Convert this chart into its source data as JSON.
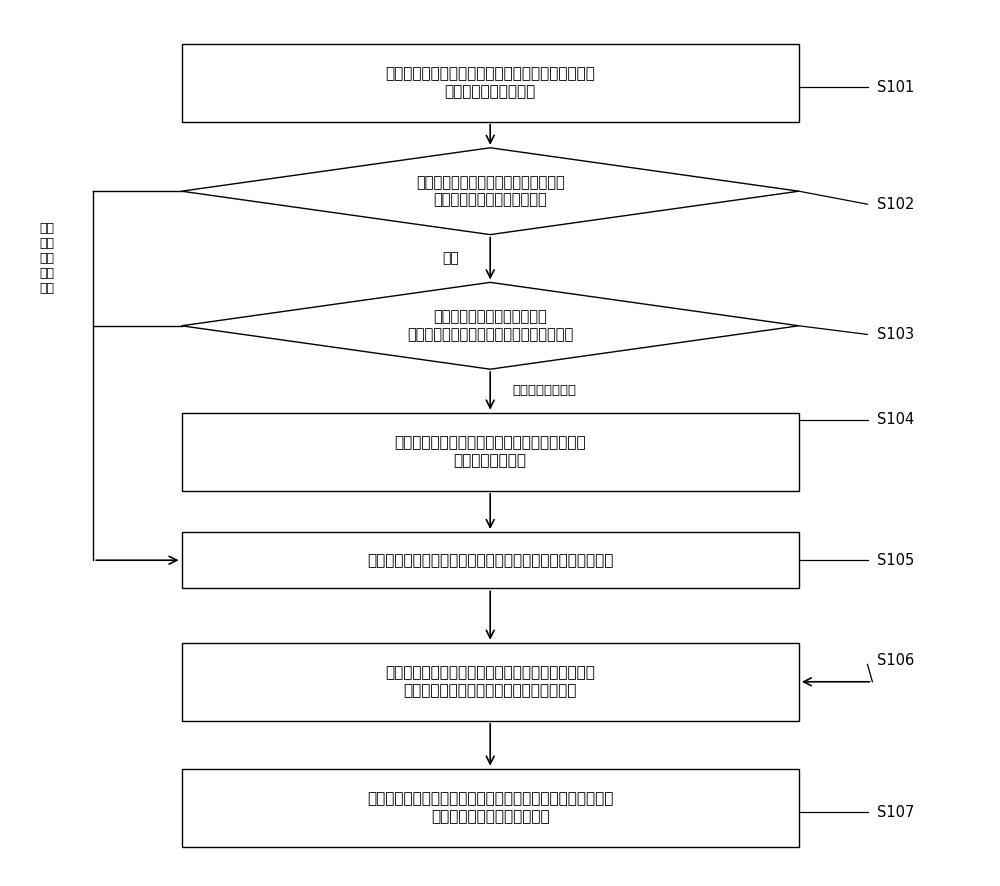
{
  "bg_color": "#ffffff",
  "line_color": "#000000",
  "text_color": "#000000",
  "s101_text": "节点向分布式系统发送选举消息，所述选举消息包含\n选举轮次和消息请求号",
  "s102_text": "判断接收到选举消息的节点的选举轮次\n与选举消息的选举轮次的大小",
  "s103_text": "判断接收到选举消息的节点的\n消息请求号与选举消息的消息请求号的大小",
  "s104_text": "使用选举消息的消息请求号更新接收选举消息的\n节点的消息请求号",
  "s105_text": "使用选举消息的选举轮次更新接收选举消息的节点的选举轮次",
  "s106_text": "根据更新后的选举轮次和消息请求号形成对中心节点\n的推荐消息，并向分布式系统发送推荐消息",
  "s107_text": "节点统计推荐消息中对中心节点的推荐，并将被推荐数达到预\n设阈值的节点确定为中心节点",
  "side_text": "选举\n消息\n的选\n举轮\n次大",
  "equal_label": "相等",
  "vote_label": "选举消息请求号大",
  "s101_label": "S101",
  "s102_label": "S102",
  "s103_label": "S103",
  "s104_label": "S104",
  "s105_label": "S105",
  "s106_label": "S106",
  "s107_label": "S107"
}
